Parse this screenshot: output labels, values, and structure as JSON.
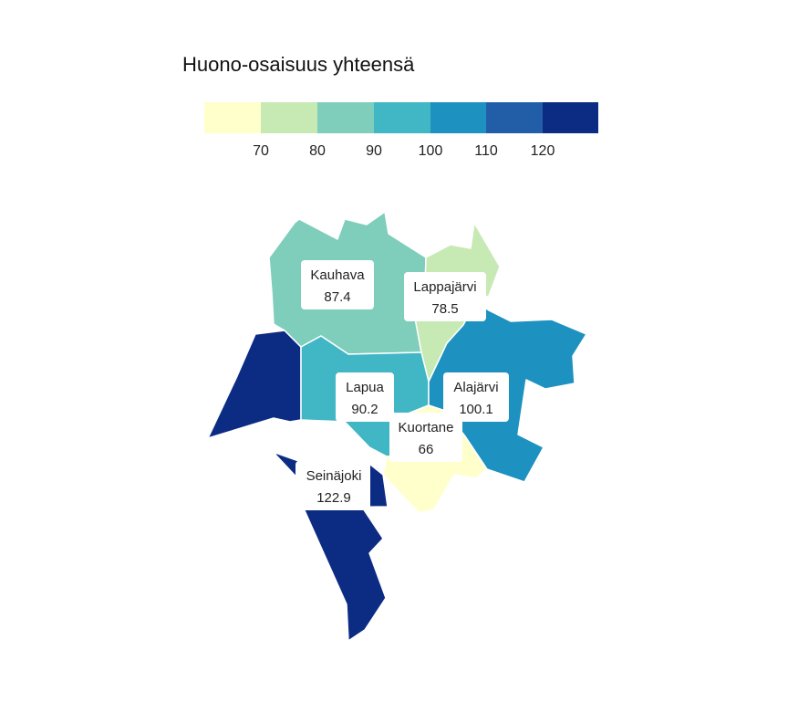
{
  "title": "Huono-osaisuus yhteensä",
  "legend": {
    "colors": [
      "#ffffcc",
      "#c7e9b4",
      "#7fcdbb",
      "#41b6c4",
      "#1d91c0",
      "#225ea8",
      "#0c2c84"
    ],
    "ticks": [
      "70",
      "80",
      "90",
      "100",
      "110",
      "120"
    ]
  },
  "regions": [
    {
      "name": "Kauhava",
      "value": "87.4",
      "color": "#7fcdbb"
    },
    {
      "name": "Lappajärvi",
      "value": "78.5",
      "color": "#c7e9b4"
    },
    {
      "name": "Lapua",
      "value": "90.2",
      "color": "#41b6c4"
    },
    {
      "name": "Alajärvi",
      "value": "100.1",
      "color": "#1d91c0"
    },
    {
      "name": "Kuortane",
      "value": "66",
      "color": "#ffffcc"
    },
    {
      "name": "Seinäjoki",
      "value": "122.9",
      "color": "#0c2c84"
    }
  ]
}
